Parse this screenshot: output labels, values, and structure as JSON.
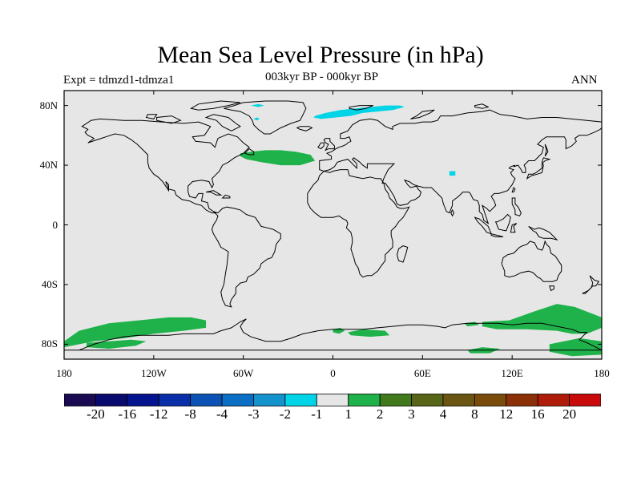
{
  "header": {
    "title": "Mean Sea Level Pressure (in hPa)",
    "experiment": "Expt = tdmzd1-tdmza1",
    "subtitle": "003kyr BP - 000kyr BP",
    "season": "ANN"
  },
  "map": {
    "projection": "cylindrical equidistant",
    "lon_range": [
      -180,
      180
    ],
    "lat_range": [
      -90,
      90
    ],
    "background_color": "#e6e6e6",
    "coastline_color": "#000000",
    "lon_ticks": [
      {
        "value": -180,
        "label": "180"
      },
      {
        "value": -120,
        "label": "120W"
      },
      {
        "value": -60,
        "label": "60W"
      },
      {
        "value": 0,
        "label": "0"
      },
      {
        "value": 60,
        "label": "60E"
      },
      {
        "value": 120,
        "label": "120E"
      },
      {
        "value": 180,
        "label": "180"
      }
    ],
    "lat_ticks": [
      {
        "value": 80,
        "label": "80N"
      },
      {
        "value": 40,
        "label": "40N"
      },
      {
        "value": 0,
        "label": "0"
      },
      {
        "value": -40,
        "label": "40S"
      },
      {
        "value": -80,
        "label": "80S"
      }
    ],
    "anomaly_regions": [
      {
        "name": "north-atlantic-positive",
        "range": "1 to 2",
        "color": "#1fb24a",
        "points": [
          [
            -62,
            48
          ],
          [
            -55,
            49
          ],
          [
            -45,
            50
          ],
          [
            -35,
            50
          ],
          [
            -25,
            49
          ],
          [
            -15,
            47
          ],
          [
            -12,
            43
          ],
          [
            -22,
            40
          ],
          [
            -35,
            40
          ],
          [
            -48,
            42
          ],
          [
            -58,
            44
          ],
          [
            -62,
            46
          ]
        ]
      },
      {
        "name": "barents-negative",
        "range": "-2 to -1",
        "color": "#00d4e6",
        "points": [
          [
            -12,
            73
          ],
          [
            -5,
            75
          ],
          [
            5,
            77
          ],
          [
            15,
            78
          ],
          [
            25,
            79
          ],
          [
            35,
            80
          ],
          [
            45,
            80
          ],
          [
            48,
            79
          ],
          [
            40,
            77
          ],
          [
            30,
            76
          ],
          [
            20,
            75
          ],
          [
            12,
            73
          ],
          [
            2,
            72
          ],
          [
            -8,
            71
          ],
          [
            -13,
            72
          ]
        ]
      },
      {
        "name": "arctic-negative-small",
        "range": "-2 to -1",
        "color": "#00d4e6",
        "points": [
          [
            -55,
            80
          ],
          [
            -50,
            81
          ],
          [
            -46,
            80
          ],
          [
            -50,
            79
          ]
        ]
      },
      {
        "name": "greenland-negative-small",
        "range": "-2 to -1",
        "color": "#00d4e6",
        "points": [
          [
            -53,
            71
          ],
          [
            -51,
            72
          ],
          [
            -49,
            71
          ],
          [
            -51,
            70
          ]
        ]
      },
      {
        "name": "central-asia-negative",
        "range": "-2 to -1",
        "color": "#00d4e6",
        "points": [
          [
            78,
            36
          ],
          [
            82,
            36
          ],
          [
            82,
            33
          ],
          [
            78,
            33
          ]
        ]
      },
      {
        "name": "pacific-antarctic-positive",
        "range": "1 to 2",
        "color": "#1fb24a",
        "points": [
          [
            -180,
            -78
          ],
          [
            -170,
            -71
          ],
          [
            -150,
            -66
          ],
          [
            -130,
            -64
          ],
          [
            -110,
            -62
          ],
          [
            -95,
            -62
          ],
          [
            -85,
            -64
          ],
          [
            -85,
            -69
          ],
          [
            -100,
            -71
          ],
          [
            -120,
            -73
          ],
          [
            -140,
            -76
          ],
          [
            -160,
            -78
          ],
          [
            -180,
            -82
          ]
        ]
      },
      {
        "name": "ross-sea-positive",
        "range": "1 to 2",
        "color": "#1fb24a",
        "points": [
          [
            -165,
            -79
          ],
          [
            -150,
            -78
          ],
          [
            -135,
            -77
          ],
          [
            -125,
            -78
          ],
          [
            -132,
            -81
          ],
          [
            -150,
            -83
          ],
          [
            -165,
            -82
          ]
        ]
      },
      {
        "name": "weddell-east-positive",
        "range": "1 to 2",
        "color": "#1fb24a",
        "points": [
          [
            0,
            -70
          ],
          [
            5,
            -69
          ],
          [
            8,
            -71
          ],
          [
            4,
            -73
          ],
          [
            0,
            -72
          ]
        ]
      },
      {
        "name": "dronning-maud-positive",
        "range": "1 to 2",
        "color": "#1fb24a",
        "points": [
          [
            10,
            -72
          ],
          [
            20,
            -70
          ],
          [
            35,
            -71
          ],
          [
            38,
            -74
          ],
          [
            25,
            -75
          ],
          [
            12,
            -74
          ]
        ]
      },
      {
        "name": "indian-antarctic-positive",
        "range": "1 to 2",
        "color": "#1fb24a",
        "points": [
          [
            100,
            -65
          ],
          [
            118,
            -64
          ],
          [
            135,
            -58
          ],
          [
            150,
            -53
          ],
          [
            162,
            -55
          ],
          [
            180,
            -62
          ],
          [
            180,
            -69
          ],
          [
            170,
            -73
          ],
          [
            160,
            -73
          ],
          [
            150,
            -71
          ],
          [
            130,
            -70
          ],
          [
            110,
            -70
          ],
          [
            100,
            -68
          ]
        ]
      },
      {
        "name": "east-antarctic-positive",
        "range": "1 to 2",
        "color": "#1fb24a",
        "points": [
          [
            90,
            -84
          ],
          [
            100,
            -82
          ],
          [
            112,
            -83
          ],
          [
            105,
            -86
          ],
          [
            92,
            -86
          ]
        ]
      },
      {
        "name": "ross-positive-east",
        "range": "1 to 2",
        "color": "#1fb24a",
        "points": [
          [
            145,
            -80
          ],
          [
            165,
            -76
          ],
          [
            180,
            -78
          ],
          [
            180,
            -87
          ],
          [
            160,
            -88
          ],
          [
            145,
            -85
          ]
        ]
      },
      {
        "name": "southern-indian-small",
        "range": "1 to 2",
        "color": "#1fb24a",
        "points": [
          [
            88,
            -66
          ],
          [
            95,
            -65
          ],
          [
            98,
            -67
          ],
          [
            90,
            -68
          ]
        ]
      }
    ]
  },
  "colorbar": {
    "colors": [
      "#1a0a52",
      "#080a6e",
      "#04138e",
      "#0a2ea8",
      "#0b52b4",
      "#0a6fc4",
      "#1492cc",
      "#00d4e6",
      "#e6e6e6",
      "#1fb24a",
      "#407a1c",
      "#586418",
      "#6a5612",
      "#7a4c0c",
      "#8c3008",
      "#b01c0a",
      "#c80a0a"
    ],
    "labels": [
      "-20",
      "-16",
      "-12",
      "-8",
      "-4",
      "-3",
      "-2",
      "-1",
      "1",
      "2",
      "3",
      "4",
      "8",
      "12",
      "16",
      "20"
    ]
  }
}
